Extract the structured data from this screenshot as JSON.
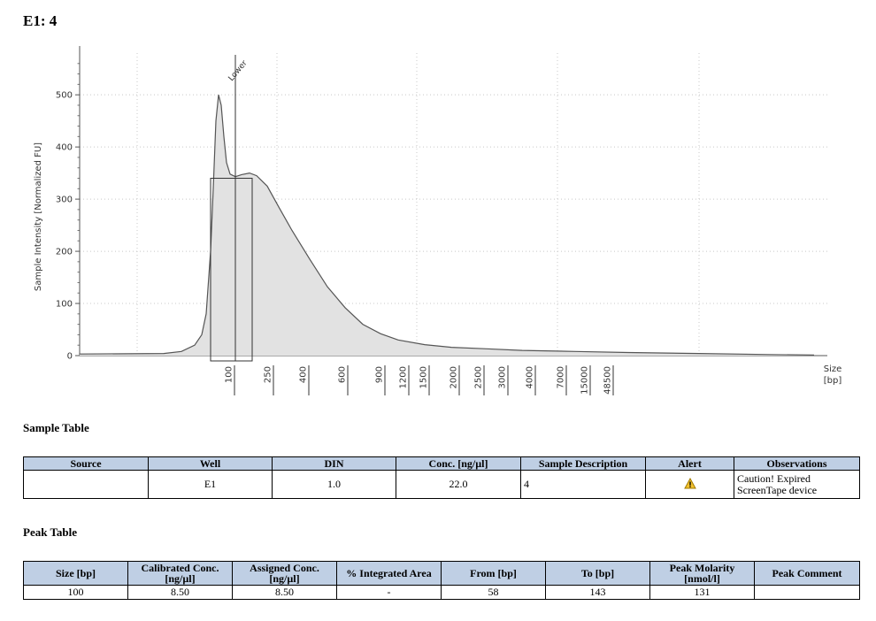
{
  "page_title": "E1: 4",
  "chart_data": {
    "type": "area",
    "xlabel": "Size\n[bp]",
    "ylabel": "Sample Intensity [Normalized FU]",
    "ylim": [
      0,
      580
    ],
    "y_ticks": [
      0,
      100,
      200,
      300,
      400,
      500
    ],
    "x_tick_labels": [
      "100",
      "250",
      "400",
      "600",
      "900",
      "1200",
      "1500",
      "2000",
      "2500",
      "3000",
      "4000",
      "7000",
      "15000",
      "48500"
    ],
    "marker_label": "Lower",
    "grid": true,
    "series": [
      {
        "values": [
          [
            0,
            3
          ],
          [
            95,
            4
          ],
          [
            115,
            8
          ],
          [
            130,
            20
          ],
          [
            138,
            40
          ],
          [
            143,
            80
          ],
          [
            148,
            200
          ],
          [
            151,
            320
          ],
          [
            154,
            450
          ],
          [
            157,
            500
          ],
          [
            160,
            480
          ],
          [
            163,
            420
          ],
          [
            166,
            370
          ],
          [
            170,
            348
          ],
          [
            176,
            343
          ],
          [
            183,
            347
          ],
          [
            192,
            350
          ],
          [
            200,
            345
          ],
          [
            212,
            325
          ],
          [
            225,
            285
          ],
          [
            240,
            240
          ],
          [
            260,
            185
          ],
          [
            280,
            132
          ],
          [
            300,
            92
          ],
          [
            320,
            60
          ],
          [
            340,
            42
          ],
          [
            360,
            30
          ],
          [
            390,
            21
          ],
          [
            420,
            16
          ],
          [
            460,
            13
          ],
          [
            500,
            10
          ],
          [
            560,
            8
          ],
          [
            620,
            6
          ],
          [
            700,
            4
          ],
          [
            780,
            2
          ],
          [
            830,
            1
          ]
        ]
      }
    ]
  },
  "sample_table": {
    "title": "Sample Table",
    "headers": [
      "Source",
      "Well",
      "DIN",
      "Conc. [ng/µl]",
      "Sample Description",
      "Alert",
      "Observations"
    ],
    "row": {
      "source": "",
      "well": "E1",
      "din": "1.0",
      "conc": "22.0",
      "description": "4",
      "alert_icon": "warning-icon",
      "observations_line1": "Caution! Expired",
      "observations_line2": "ScreenTape device"
    }
  },
  "peak_table": {
    "title": "Peak Table",
    "headers": [
      "Size [bp]",
      "Calibrated Conc.\n[ng/µl]",
      "Assigned Conc.\n[ng/µl]",
      "% Integrated Area",
      "From [bp]",
      "To [bp]",
      "Peak Molarity\n[nmol/l]",
      "Peak Comment"
    ],
    "row": [
      "100",
      "8.50",
      "8.50",
      "-",
      "58",
      "143",
      "131",
      ""
    ]
  }
}
